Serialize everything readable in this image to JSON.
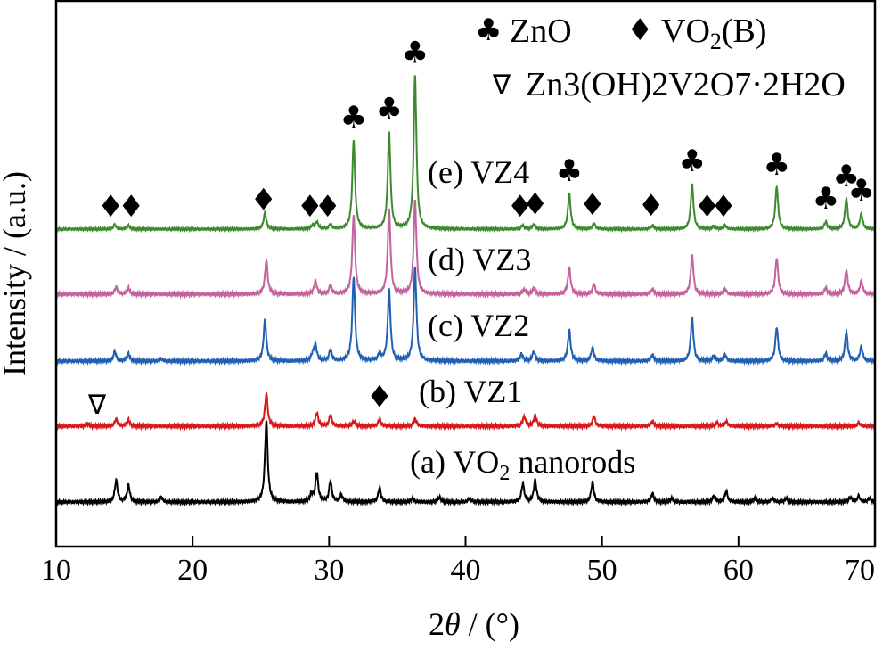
{
  "chart_data": {
    "type": "line",
    "xlabel_prefix": "2",
    "xlabel_theta": "θ",
    "xlabel_suffix": " / (°)",
    "ylabel": "Intensity / (a.u.)",
    "xlim": [
      10,
      70
    ],
    "xticks": [
      "10",
      "20",
      "30",
      "40",
      "50",
      "60",
      "70"
    ],
    "legend": {
      "zno_symbol": "♣",
      "zno_label": "ZnO",
      "vo2_symbol": "♦",
      "vo2_label_main": "VO",
      "vo2_label_sub": "2",
      "vo2_label_end": "(B)",
      "zvo_symbol": "∇",
      "zvo_label": "Zn3(OH)2V2O7·2H2O"
    },
    "series": [
      {
        "name": "(a) VO2 nanorods",
        "label_main": "(a) VO",
        "label_sub": "2",
        "label_end": " nanorods",
        "color": "#000000",
        "baseline": 0,
        "peaks": [
          [
            14.4,
            18
          ],
          [
            15.3,
            14
          ],
          [
            17.7,
            4
          ],
          [
            25.4,
            68
          ],
          [
            28.7,
            6
          ],
          [
            29.1,
            24
          ],
          [
            30.1,
            17
          ],
          [
            30.9,
            6
          ],
          [
            33.7,
            12
          ],
          [
            36.1,
            3
          ],
          [
            38.1,
            4
          ],
          [
            40.3,
            3
          ],
          [
            44.2,
            15
          ],
          [
            45.1,
            18
          ],
          [
            49.3,
            16
          ],
          [
            53.7,
            7
          ],
          [
            55.1,
            3
          ],
          [
            58.2,
            5
          ],
          [
            59.1,
            9
          ],
          [
            61.2,
            3
          ],
          [
            62.5,
            3
          ],
          [
            63.5,
            3
          ],
          [
            68.2,
            4
          ],
          [
            68.8,
            5
          ],
          [
            69.6,
            3
          ]
        ]
      },
      {
        "name": "(b) VZ1",
        "label_main": "(b) VZ1",
        "label_sub": "",
        "label_end": "",
        "color": "#d7191c",
        "baseline": 0,
        "peaks": [
          [
            12.3,
            2
          ],
          [
            14.4,
            6
          ],
          [
            15.3,
            5
          ],
          [
            25.4,
            27
          ],
          [
            29.1,
            11
          ],
          [
            30.1,
            9
          ],
          [
            31.8,
            4
          ],
          [
            33.7,
            6
          ],
          [
            36.3,
            6
          ],
          [
            44.3,
            8
          ],
          [
            45.1,
            9
          ],
          [
            49.4,
            8
          ],
          [
            53.7,
            4
          ],
          [
            58.4,
            3
          ],
          [
            59.1,
            4
          ],
          [
            62.8,
            2
          ],
          [
            68.8,
            3
          ]
        ]
      },
      {
        "name": "(c) VZ2",
        "label_main": "(c) VZ2",
        "label_sub": "",
        "label_end": "",
        "color": "#1f5fb4",
        "baseline": 0,
        "peaks": [
          [
            14.3,
            8
          ],
          [
            15.3,
            6
          ],
          [
            17.7,
            2
          ],
          [
            25.3,
            34
          ],
          [
            28.8,
            5
          ],
          [
            29.0,
            13
          ],
          [
            30.1,
            9
          ],
          [
            31.8,
            70
          ],
          [
            33.7,
            6
          ],
          [
            34.4,
            59
          ],
          [
            36.3,
            78
          ],
          [
            44.1,
            6
          ],
          [
            45.0,
            8
          ],
          [
            47.6,
            26
          ],
          [
            49.3,
            11
          ],
          [
            53.7,
            5
          ],
          [
            56.6,
            36
          ],
          [
            58.2,
            4
          ],
          [
            59.0,
            5
          ],
          [
            62.8,
            28
          ],
          [
            66.4,
            6
          ],
          [
            67.9,
            24
          ],
          [
            69.0,
            12
          ]
        ]
      },
      {
        "name": "(d) VZ3",
        "label_main": "(d) VZ3",
        "label_sub": "",
        "label_end": "",
        "color": "#c4629e",
        "baseline": 0,
        "peaks": [
          [
            14.4,
            6
          ],
          [
            15.3,
            5
          ],
          [
            25.4,
            28
          ],
          [
            29.0,
            11
          ],
          [
            30.1,
            7
          ],
          [
            31.8,
            66
          ],
          [
            34.4,
            70
          ],
          [
            36.3,
            78
          ],
          [
            44.3,
            4
          ],
          [
            45.0,
            5
          ],
          [
            47.6,
            22
          ],
          [
            49.4,
            8
          ],
          [
            53.7,
            4
          ],
          [
            56.6,
            32
          ],
          [
            59.0,
            4
          ],
          [
            62.8,
            30
          ],
          [
            66.4,
            5
          ],
          [
            67.9,
            20
          ],
          [
            69.0,
            11
          ]
        ]
      },
      {
        "name": "(e) VZ4",
        "label_main": "(e) VZ4",
        "label_sub": "",
        "label_end": "",
        "color": "#3c8a2e",
        "baseline": 0,
        "peaks": [
          [
            14.3,
            5
          ],
          [
            15.3,
            4
          ],
          [
            25.3,
            18
          ],
          [
            28.8,
            4
          ],
          [
            29.1,
            8
          ],
          [
            30.1,
            5
          ],
          [
            31.8,
            100
          ],
          [
            34.4,
            108
          ],
          [
            36.3,
            172
          ],
          [
            44.2,
            4
          ],
          [
            45.0,
            5
          ],
          [
            47.6,
            40
          ],
          [
            49.4,
            6
          ],
          [
            53.7,
            4
          ],
          [
            56.6,
            50
          ],
          [
            58.2,
            3
          ],
          [
            59.0,
            4
          ],
          [
            62.8,
            48
          ],
          [
            66.4,
            8
          ],
          [
            67.9,
            34
          ],
          [
            69.0,
            17
          ]
        ]
      }
    ],
    "markers": [
      {
        "symbol": "♦",
        "x": 14.0,
        "series": 4
      },
      {
        "symbol": "♦",
        "x": 15.5,
        "series": 4
      },
      {
        "symbol": "♦",
        "x": 25.2,
        "series": 4
      },
      {
        "symbol": "♦",
        "x": 28.6,
        "series": 4
      },
      {
        "symbol": "♦",
        "x": 29.9,
        "series": 4
      },
      {
        "symbol": "♣",
        "x": 31.8,
        "series": 4
      },
      {
        "symbol": "♣",
        "x": 34.4,
        "series": 4
      },
      {
        "symbol": "♣",
        "x": 36.3,
        "series": 4
      },
      {
        "symbol": "♦",
        "x": 44.0,
        "series": 4
      },
      {
        "symbol": "♦",
        "x": 45.1,
        "series": 4
      },
      {
        "symbol": "♣",
        "x": 47.6,
        "series": 4
      },
      {
        "symbol": "♦",
        "x": 49.3,
        "series": 4
      },
      {
        "symbol": "♦",
        "x": 53.6,
        "series": 4
      },
      {
        "symbol": "♣",
        "x": 56.6,
        "series": 4
      },
      {
        "symbol": "♦",
        "x": 57.7,
        "series": 4
      },
      {
        "symbol": "♦",
        "x": 58.9,
        "series": 4
      },
      {
        "symbol": "♣",
        "x": 62.8,
        "series": 4
      },
      {
        "symbol": "♣",
        "x": 66.4,
        "series": 4
      },
      {
        "symbol": "♣",
        "x": 67.9,
        "series": 4
      },
      {
        "symbol": "♣",
        "x": 69.0,
        "series": 4
      },
      {
        "symbol": "∇",
        "x": 13.0,
        "series": 1
      },
      {
        "symbol": "♦",
        "x": 33.7,
        "series": 1
      }
    ]
  }
}
